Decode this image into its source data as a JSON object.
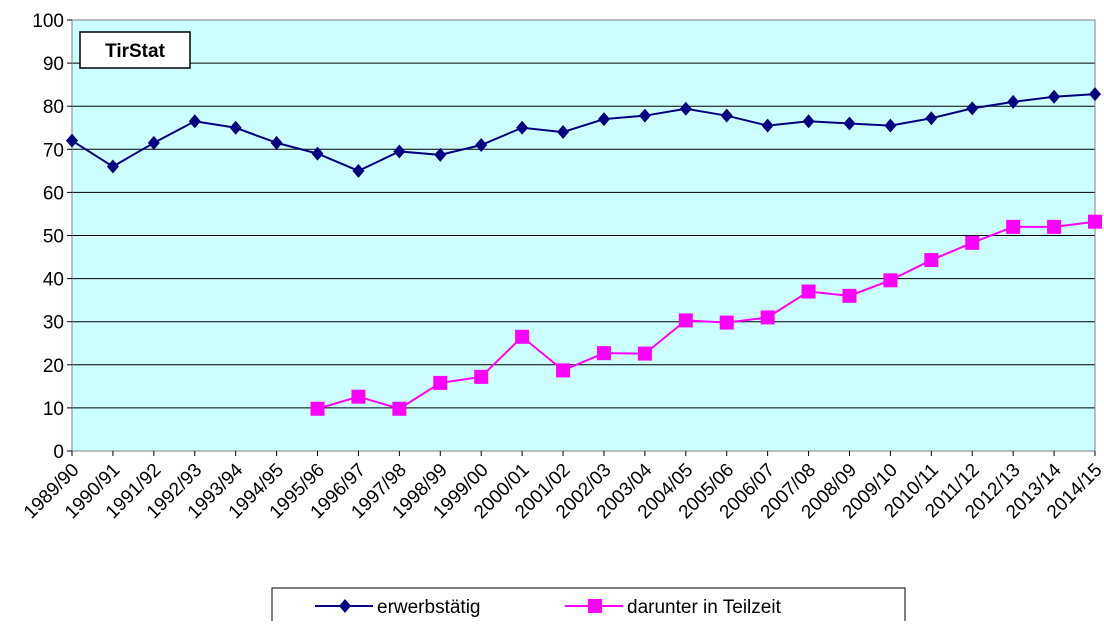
{
  "chart_data": {
    "type": "line",
    "annotation": "TirStat",
    "categories": [
      "1989/90",
      "1990/91",
      "1991/92",
      "1992/93",
      "1993/94",
      "1994/95",
      "1995/96",
      "1996/97",
      "1997/98",
      "1998/99",
      "1999/00",
      "2000/01",
      "2001/02",
      "2002/03",
      "2003/04",
      "2004/05",
      "2005/06",
      "2006/07",
      "2007/08",
      "2008/09",
      "2009/10",
      "2010/11",
      "2011/12",
      "2012/13",
      "2013/14",
      "2014/15"
    ],
    "series": [
      {
        "name": "erwerbstätig",
        "color": "#000080",
        "marker": "diamond",
        "values": [
          72,
          66,
          71.5,
          76.5,
          75,
          71.5,
          69,
          65,
          69.5,
          68.7,
          71,
          75,
          74,
          77,
          77.8,
          79.4,
          77.8,
          75.5,
          76.5,
          76,
          75.5,
          77.2,
          79.5,
          81,
          82.2,
          82.8
        ]
      },
      {
        "name": "darunter in Teilzeit",
        "color": "#ff00ff",
        "marker": "square",
        "values": [
          null,
          null,
          null,
          null,
          null,
          null,
          9.8,
          12.6,
          9.8,
          15.8,
          17.2,
          26.5,
          18.7,
          22.7,
          22.6,
          30.3,
          29.8,
          31,
          37,
          36,
          39.6,
          44.3,
          48.3,
          52,
          52,
          53.2
        ]
      }
    ],
    "ylim": [
      0,
      100
    ],
    "yticks": [
      0,
      10,
      20,
      30,
      40,
      50,
      60,
      70,
      80,
      90,
      100
    ],
    "grid": true,
    "plot_background": "#ccffff",
    "legend": "bottom"
  }
}
